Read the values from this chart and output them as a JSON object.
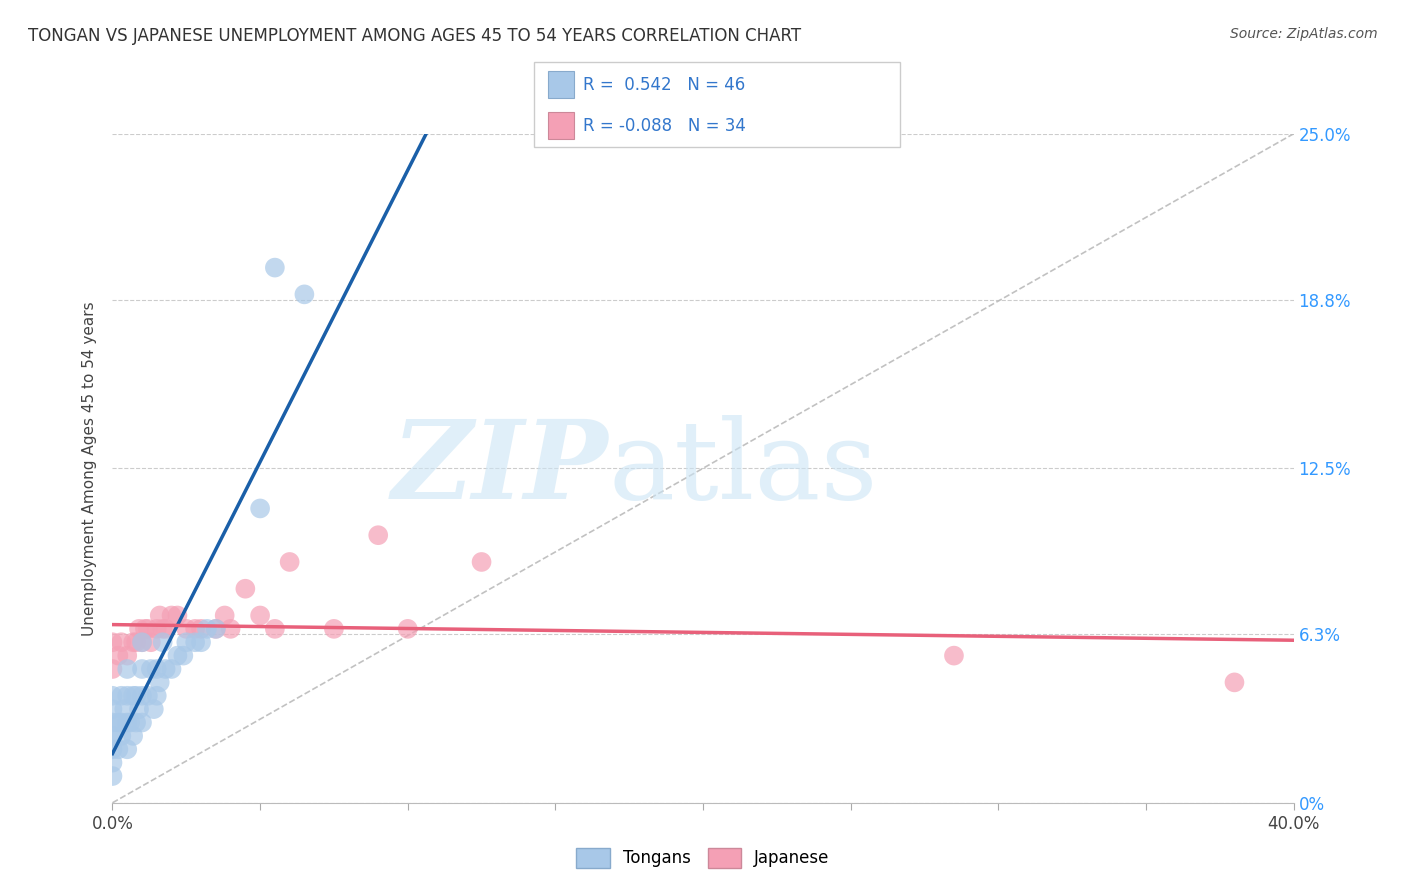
{
  "title": "TONGAN VS JAPANESE UNEMPLOYMENT AMONG AGES 45 TO 54 YEARS CORRELATION CHART",
  "source": "Source: ZipAtlas.com",
  "ylabel": "Unemployment Among Ages 45 to 54 years",
  "xlim": [
    0.0,
    0.4
  ],
  "ylim": [
    0.0,
    0.25
  ],
  "xticks": [
    0.0,
    0.05,
    0.1,
    0.15,
    0.2,
    0.25,
    0.3,
    0.35,
    0.4
  ],
  "xticklabels_show": [
    "0.0%",
    "",
    "",
    "",
    "",
    "",
    "",
    "",
    "40.0%"
  ],
  "yticks": [
    0.0,
    0.063,
    0.125,
    0.188,
    0.25
  ],
  "yticklabels": [
    "0%",
    "6.3%",
    "12.5%",
    "18.8%",
    "25.0%"
  ],
  "tongan_color": "#a8c8e8",
  "japanese_color": "#f4a0b5",
  "tongan_line_color": "#1a5fa8",
  "japanese_line_color": "#e8607a",
  "background_color": "#ffffff",
  "grid_color": "#cccccc",
  "tongan_x": [
    0.0,
    0.0,
    0.0,
    0.0,
    0.0,
    0.0,
    0.0,
    0.002,
    0.002,
    0.003,
    0.003,
    0.003,
    0.004,
    0.005,
    0.005,
    0.005,
    0.005,
    0.006,
    0.007,
    0.007,
    0.008,
    0.008,
    0.009,
    0.01,
    0.01,
    0.01,
    0.01,
    0.012,
    0.013,
    0.014,
    0.015,
    0.015,
    0.016,
    0.017,
    0.018,
    0.02,
    0.022,
    0.024,
    0.025,
    0.028,
    0.03,
    0.032,
    0.035,
    0.05,
    0.055,
    0.065
  ],
  "tongan_y": [
    0.01,
    0.015,
    0.02,
    0.025,
    0.03,
    0.035,
    0.04,
    0.02,
    0.03,
    0.025,
    0.03,
    0.04,
    0.035,
    0.02,
    0.03,
    0.04,
    0.05,
    0.03,
    0.025,
    0.04,
    0.03,
    0.04,
    0.035,
    0.03,
    0.04,
    0.05,
    0.06,
    0.04,
    0.05,
    0.035,
    0.04,
    0.05,
    0.045,
    0.06,
    0.05,
    0.05,
    0.055,
    0.055,
    0.06,
    0.06,
    0.06,
    0.065,
    0.065,
    0.11,
    0.2,
    0.19
  ],
  "japanese_x": [
    0.0,
    0.0,
    0.002,
    0.003,
    0.005,
    0.007,
    0.008,
    0.009,
    0.01,
    0.011,
    0.012,
    0.013,
    0.015,
    0.016,
    0.017,
    0.018,
    0.02,
    0.022,
    0.025,
    0.028,
    0.03,
    0.035,
    0.038,
    0.04,
    0.045,
    0.05,
    0.055,
    0.06,
    0.075,
    0.09,
    0.1,
    0.125,
    0.285,
    0.38
  ],
  "japanese_y": [
    0.05,
    0.06,
    0.055,
    0.06,
    0.055,
    0.06,
    0.06,
    0.065,
    0.06,
    0.065,
    0.065,
    0.06,
    0.065,
    0.07,
    0.065,
    0.065,
    0.07,
    0.07,
    0.065,
    0.065,
    0.065,
    0.065,
    0.07,
    0.065,
    0.08,
    0.07,
    0.065,
    0.09,
    0.065,
    0.1,
    0.065,
    0.09,
    0.055,
    0.045
  ]
}
